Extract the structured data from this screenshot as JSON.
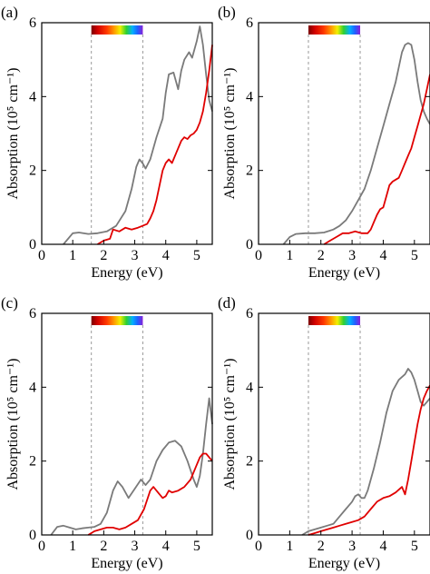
{
  "chart_data": [
    {
      "panel_label": "(a)",
      "type": "line",
      "xlabel": "Energy (eV)",
      "ylabel": "Absorption (10⁵ cm⁻¹)",
      "xlim": [
        0,
        5.5
      ],
      "ylim": [
        0,
        6
      ],
      "xticks": [
        0,
        1,
        2,
        3,
        4,
        5
      ],
      "yticks": [
        0,
        2,
        4,
        6
      ],
      "vlines": [
        1.6,
        3.26
      ],
      "series": [
        {
          "color": "#7a7a7a",
          "x": [
            0.7,
            1.0,
            1.2,
            1.5,
            1.8,
            2.1,
            2.4,
            2.7,
            2.9,
            3.05,
            3.15,
            3.25,
            3.35,
            3.5,
            3.7,
            3.9,
            4.0,
            4.1,
            4.25,
            4.4,
            4.5,
            4.6,
            4.75,
            4.85,
            5.0,
            5.1,
            5.2,
            5.3,
            5.4,
            5.5
          ],
          "y": [
            0.0,
            0.3,
            0.32,
            0.28,
            0.3,
            0.35,
            0.5,
            0.9,
            1.5,
            2.1,
            2.3,
            2.2,
            2.05,
            2.3,
            2.9,
            3.4,
            4.1,
            4.6,
            4.65,
            4.2,
            4.7,
            5.0,
            5.2,
            5.05,
            5.5,
            5.9,
            5.4,
            4.6,
            3.9,
            3.6
          ]
        },
        {
          "color": "#e00000",
          "x": [
            1.8,
            2.0,
            2.2,
            2.3,
            2.5,
            2.7,
            2.9,
            3.1,
            3.25,
            3.4,
            3.5,
            3.6,
            3.7,
            3.8,
            3.9,
            4.0,
            4.1,
            4.2,
            4.35,
            4.5,
            4.6,
            4.7,
            4.8,
            4.9,
            5.0,
            5.1,
            5.2,
            5.3,
            5.4,
            5.5
          ],
          "y": [
            0.0,
            0.1,
            0.15,
            0.4,
            0.35,
            0.45,
            0.4,
            0.45,
            0.5,
            0.55,
            0.7,
            0.9,
            1.2,
            1.6,
            2.0,
            2.2,
            2.3,
            2.2,
            2.5,
            2.8,
            2.9,
            2.85,
            2.95,
            3.0,
            3.1,
            3.3,
            3.6,
            4.1,
            4.7,
            5.4
          ]
        }
      ]
    },
    {
      "panel_label": "(b)",
      "type": "line",
      "xlabel": "Energy (eV)",
      "ylabel": "Absorption (10⁵ cm⁻¹)",
      "xlim": [
        0,
        5.5
      ],
      "ylim": [
        0,
        6
      ],
      "xticks": [
        0,
        1,
        2,
        3,
        4,
        5
      ],
      "yticks": [
        0,
        2,
        4,
        6
      ],
      "vlines": [
        1.6,
        3.26
      ],
      "series": [
        {
          "color": "#7a7a7a",
          "x": [
            0.8,
            1.0,
            1.2,
            1.5,
            1.8,
            2.1,
            2.4,
            2.6,
            2.8,
            3.0,
            3.2,
            3.4,
            3.6,
            3.8,
            4.0,
            4.2,
            4.4,
            4.6,
            4.7,
            4.8,
            4.9,
            5.0,
            5.1,
            5.2,
            5.3,
            5.4,
            5.5
          ],
          "y": [
            0.0,
            0.2,
            0.28,
            0.3,
            0.3,
            0.32,
            0.4,
            0.5,
            0.65,
            0.9,
            1.2,
            1.5,
            2.0,
            2.6,
            3.2,
            3.8,
            4.4,
            5.2,
            5.4,
            5.45,
            5.4,
            5.0,
            4.4,
            3.9,
            3.6,
            3.4,
            3.25
          ]
        },
        {
          "color": "#e00000",
          "x": [
            2.1,
            2.3,
            2.5,
            2.7,
            2.9,
            3.1,
            3.3,
            3.5,
            3.6,
            3.7,
            3.8,
            3.9,
            4.0,
            4.1,
            4.2,
            4.3,
            4.4,
            4.5,
            4.6,
            4.7,
            4.8,
            4.9,
            5.0,
            5.1,
            5.2,
            5.3,
            5.4,
            5.5
          ],
          "y": [
            0.0,
            0.1,
            0.2,
            0.3,
            0.3,
            0.35,
            0.3,
            0.3,
            0.4,
            0.6,
            0.8,
            0.95,
            1.0,
            1.3,
            1.6,
            1.7,
            1.75,
            1.8,
            2.0,
            2.2,
            2.4,
            2.6,
            2.9,
            3.2,
            3.5,
            3.8,
            4.2,
            4.6
          ]
        }
      ]
    },
    {
      "panel_label": "(c)",
      "type": "line",
      "xlabel": "Energy (eV)",
      "ylabel": "Absorption (10⁵ cm⁻¹)",
      "xlim": [
        0,
        5.5
      ],
      "ylim": [
        0,
        6
      ],
      "xticks": [
        0,
        1,
        2,
        3,
        4,
        5
      ],
      "yticks": [
        0,
        2,
        4,
        6
      ],
      "vlines": [
        1.6,
        3.26
      ],
      "series": [
        {
          "color": "#7a7a7a",
          "x": [
            0.3,
            0.5,
            0.7,
            0.9,
            1.1,
            1.3,
            1.5,
            1.7,
            1.9,
            2.1,
            2.3,
            2.45,
            2.6,
            2.8,
            3.0,
            3.2,
            3.35,
            3.5,
            3.7,
            3.9,
            4.1,
            4.3,
            4.5,
            4.7,
            4.9,
            5.0,
            5.1,
            5.2,
            5.3,
            5.4,
            5.5
          ],
          "y": [
            0.0,
            0.22,
            0.25,
            0.2,
            0.15,
            0.18,
            0.2,
            0.22,
            0.3,
            0.6,
            1.2,
            1.45,
            1.3,
            1.0,
            1.25,
            1.5,
            1.35,
            1.5,
            2.0,
            2.3,
            2.5,
            2.55,
            2.4,
            2.0,
            1.5,
            1.3,
            1.6,
            2.2,
            3.0,
            3.7,
            3.0
          ]
        },
        {
          "color": "#e00000",
          "x": [
            1.5,
            1.7,
            1.9,
            2.1,
            2.3,
            2.5,
            2.7,
            2.9,
            3.1,
            3.3,
            3.5,
            3.6,
            3.7,
            3.8,
            3.9,
            4.0,
            4.1,
            4.2,
            4.4,
            4.6,
            4.8,
            4.9,
            5.0,
            5.1,
            5.2,
            5.3,
            5.4,
            5.5
          ],
          "y": [
            0.0,
            0.1,
            0.15,
            0.2,
            0.2,
            0.15,
            0.2,
            0.3,
            0.4,
            0.7,
            1.2,
            1.3,
            1.2,
            1.1,
            1.0,
            1.05,
            1.2,
            1.15,
            1.2,
            1.3,
            1.5,
            1.7,
            1.9,
            2.1,
            2.2,
            2.2,
            2.1,
            2.0
          ]
        }
      ]
    },
    {
      "panel_label": "(d)",
      "type": "line",
      "xlabel": "Energy (eV)",
      "ylabel": "Absorption (10⁵ cm⁻¹)",
      "xlim": [
        0,
        5.5
      ],
      "ylim": [
        0,
        6
      ],
      "xticks": [
        0,
        1,
        2,
        3,
        4,
        5
      ],
      "yticks": [
        0,
        2,
        4,
        6
      ],
      "vlines": [
        1.6,
        3.26
      ],
      "series": [
        {
          "color": "#7a7a7a",
          "x": [
            1.4,
            1.6,
            1.8,
            2.0,
            2.2,
            2.4,
            2.6,
            2.8,
            3.0,
            3.1,
            3.2,
            3.3,
            3.4,
            3.5,
            3.7,
            3.9,
            4.1,
            4.3,
            4.5,
            4.7,
            4.8,
            4.9,
            5.0,
            5.1,
            5.2,
            5.3,
            5.4,
            5.5
          ],
          "y": [
            0.0,
            0.1,
            0.15,
            0.2,
            0.25,
            0.3,
            0.5,
            0.7,
            0.9,
            1.05,
            1.1,
            1.0,
            1.0,
            1.2,
            1.8,
            2.5,
            3.3,
            3.9,
            4.2,
            4.35,
            4.5,
            4.4,
            4.2,
            3.9,
            3.6,
            3.5,
            3.6,
            3.7
          ]
        },
        {
          "color": "#e00000",
          "x": [
            1.6,
            1.8,
            2.0,
            2.2,
            2.4,
            2.6,
            2.8,
            3.0,
            3.2,
            3.4,
            3.6,
            3.8,
            4.0,
            4.2,
            4.4,
            4.6,
            4.7,
            4.8,
            4.9,
            5.0,
            5.1,
            5.2,
            5.3,
            5.4,
            5.5
          ],
          "y": [
            0.0,
            0.05,
            0.1,
            0.15,
            0.2,
            0.25,
            0.3,
            0.35,
            0.4,
            0.5,
            0.7,
            0.9,
            1.0,
            1.05,
            1.15,
            1.3,
            1.1,
            1.5,
            2.0,
            2.5,
            3.0,
            3.4,
            3.7,
            3.9,
            4.05
          ]
        }
      ]
    }
  ]
}
